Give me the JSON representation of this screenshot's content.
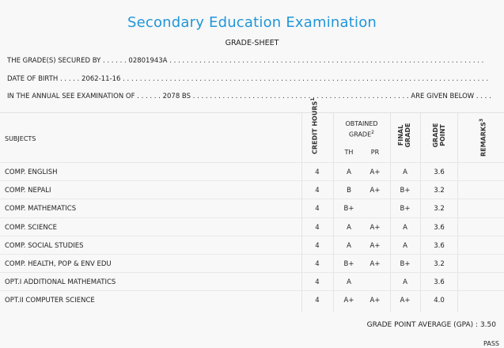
{
  "title": "Secondary Education Examination",
  "subtitle": "GRADE-SHEET",
  "info": {
    "line1_label": "THE GRADE(S) SECURED BY . . . . . . ",
    "line1_value": "02801943A",
    "line1_tail": " . . . . . . . . . . . . . . . . . . . . . . . . . . . . . . . . . . . . . . . . . . . . . . . . . . . . . . . . . . . . . . . . . . . . . . . . . .",
    "line2_label": "DATE OF BIRTH . . . . . ",
    "line2_value": "2062-11-16",
    "line2_tail": " . . . . . . . . . . . . . . . . . . . . . . . . . . . . . . . . . . . . . . . . . . . . . . . . . . . . . . . . . . . . . . . . . . . . . . . . . . . . . . . . . . . . . .",
    "line3_label": "IN THE ANNUAL SEE EXAMINATION OF . . . . . . ",
    "line3_value": "2078 BS",
    "line3_tail": " . . . . . . . . . . . . . . . . . . . . . . . . . . . . . . . . . . . . . . . . . . . . . . . . . . . ARE GIVEN BELOW . . . ."
  },
  "table": {
    "headers": {
      "subjects": "SUBJECTS",
      "credit_hours": "CREDIT HOURS",
      "credit_sup": "1",
      "obtained": "OBTAINED",
      "grade": "GRADE",
      "grade_sup": "2",
      "th": "TH",
      "pr": "PR",
      "final_grade_1": "FINAL",
      "final_grade_2": "GRADE",
      "grade_point_1": "GRADE",
      "grade_point_2": "POINT",
      "remarks": "REMARKS",
      "remarks_sup": "3"
    },
    "rows": [
      {
        "subject": "COMP. ENGLISH",
        "credit": "4",
        "th": "A",
        "pr": "A+",
        "final": "A",
        "gp": "3.6"
      },
      {
        "subject": "COMP. NEPALI",
        "credit": "4",
        "th": "B",
        "pr": "A+",
        "final": "B+",
        "gp": "3.2"
      },
      {
        "subject": "COMP. MATHEMATICS",
        "credit": "4",
        "th": "B+",
        "pr": "",
        "final": "B+",
        "gp": "3.2"
      },
      {
        "subject": "COMP. SCIENCE",
        "credit": "4",
        "th": "A",
        "pr": "A+",
        "final": "A",
        "gp": "3.6"
      },
      {
        "subject": "COMP. SOCIAL STUDIES",
        "credit": "4",
        "th": "A",
        "pr": "A+",
        "final": "A",
        "gp": "3.6"
      },
      {
        "subject": "COMP. HEALTH, POP & ENV EDU",
        "credit": "4",
        "th": "B+",
        "pr": "A+",
        "final": "B+",
        "gp": "3.2"
      },
      {
        "subject": "OPT.I ADDITIONAL MATHEMATICS",
        "credit": "4",
        "th": "A",
        "pr": "",
        "final": "A",
        "gp": "3.6"
      },
      {
        "subject": "OPT.II COMPUTER SCIENCE",
        "credit": "4",
        "th": "A+",
        "pr": "A+",
        "final": "A+",
        "gp": "4.0"
      }
    ]
  },
  "gpa_label": "GRADE POINT AVERAGE (GPA) : ",
  "gpa_value": "3.50",
  "result": "PASS"
}
